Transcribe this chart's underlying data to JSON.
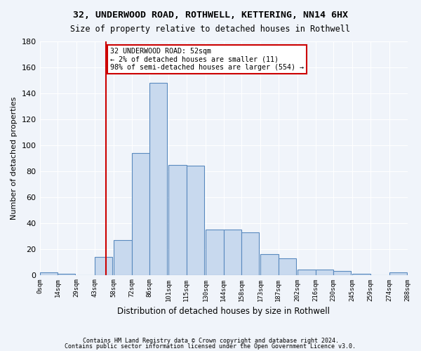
{
  "title1": "32, UNDERWOOD ROAD, ROTHWELL, KETTERING, NN14 6HX",
  "title2": "Size of property relative to detached houses in Rothwell",
  "xlabel": "Distribution of detached houses by size in Rothwell",
  "ylabel": "Number of detached properties",
  "bar_left_edges": [
    0,
    14,
    29,
    43,
    58,
    72,
    86,
    101,
    115,
    130,
    144,
    158,
    173,
    187,
    202,
    216,
    230,
    245,
    259,
    274
  ],
  "bar_heights": [
    2,
    1,
    0,
    14,
    27,
    94,
    148,
    85,
    84,
    35,
    35,
    33,
    16,
    13,
    4,
    4,
    3,
    1,
    0,
    2
  ],
  "bin_width": 14,
  "bar_color": "#c8d9ee",
  "bar_edge_color": "#5a8abf",
  "vline_x": 52,
  "vline_color": "#cc0000",
  "annotation_text": "32 UNDERWOOD ROAD: 52sqm\n← 2% of detached houses are smaller (11)\n98% of semi-detached houses are larger (554) →",
  "annotation_box_color": "white",
  "annotation_box_edge_color": "#cc0000",
  "ylim": [
    0,
    180
  ],
  "yticks": [
    0,
    20,
    40,
    60,
    80,
    100,
    120,
    140,
    160,
    180
  ],
  "xtick_labels": [
    "0sqm",
    "14sqm",
    "29sqm",
    "43sqm",
    "58sqm",
    "72sqm",
    "86sqm",
    "101sqm",
    "115sqm",
    "130sqm",
    "144sqm",
    "158sqm",
    "173sqm",
    "187sqm",
    "202sqm",
    "216sqm",
    "230sqm",
    "245sqm",
    "259sqm",
    "274sqm",
    "288sqm"
  ],
  "footer1": "Contains HM Land Registry data © Crown copyright and database right 2024.",
  "footer2": "Contains public sector information licensed under the Open Government Licence v3.0.",
  "bg_color": "#f0f4fa",
  "grid_color": "#ffffff"
}
